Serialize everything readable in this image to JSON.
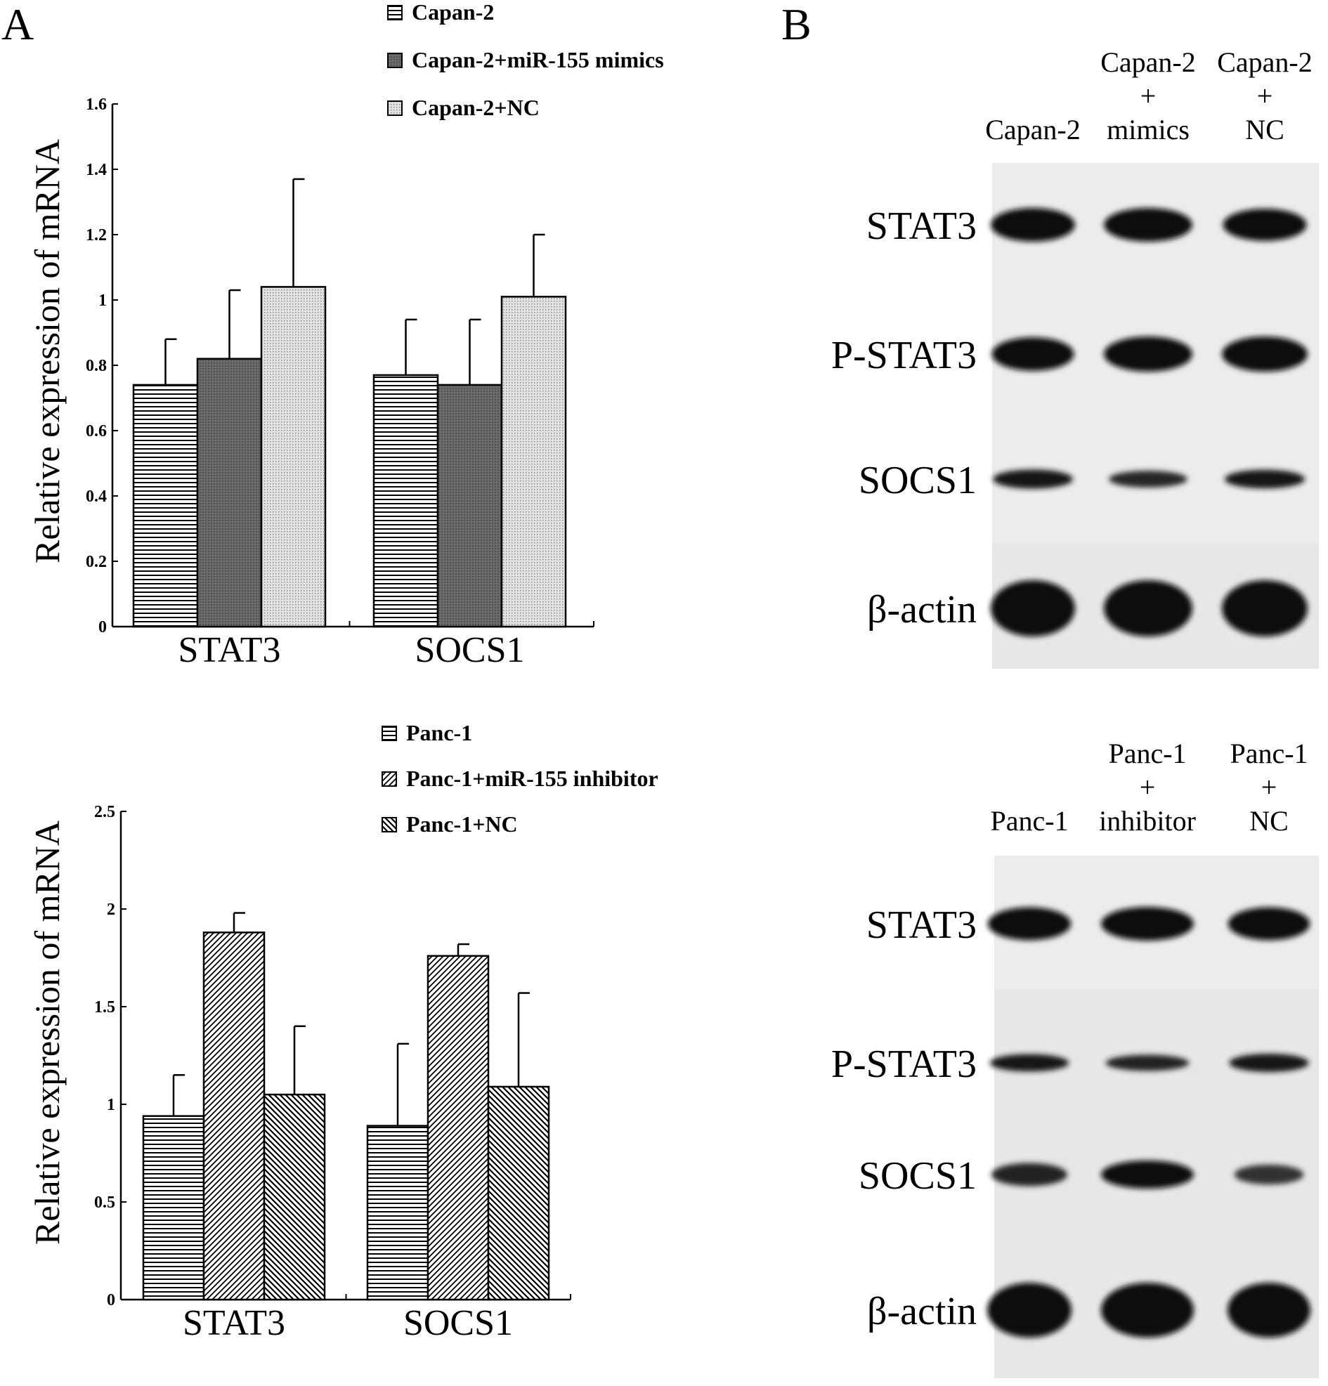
{
  "panels": [
    {
      "letter": "A"
    },
    {
      "letter": "B"
    }
  ],
  "chart_data": [
    {
      "type": "bar",
      "title": "",
      "xlabel": "",
      "ylabel": "Relative expression of mRNA",
      "categories": [
        "STAT3",
        "SOCS1"
      ],
      "ylim": [
        0,
        1.6
      ],
      "yticks": [
        "0",
        "0.2",
        "0.4",
        "0.6",
        "0.8",
        "1",
        "1.2",
        "1.4",
        "1.6"
      ],
      "ytick_values": [
        0,
        0.2,
        0.4,
        0.6,
        0.8,
        1.0,
        1.2,
        1.4,
        1.6
      ],
      "legend_position": "top",
      "series": [
        {
          "name": "Capan-2",
          "values": [
            0.74,
            0.77
          ],
          "errors": [
            0.14,
            0.17
          ],
          "pattern": "hlines"
        },
        {
          "name": "Capan-2+miR-155 mimics",
          "values": [
            0.82,
            0.74
          ],
          "errors": [
            0.21,
            0.2
          ],
          "pattern": "dark"
        },
        {
          "name": "Capan-2+NC",
          "values": [
            1.04,
            1.01
          ],
          "errors": [
            0.33,
            0.19
          ],
          "pattern": "dots"
        }
      ]
    },
    {
      "type": "bar",
      "title": "",
      "xlabel": "",
      "ylabel": "Relative expression of mRNA",
      "categories": [
        "STAT3",
        "SOCS1"
      ],
      "ylim": [
        0,
        2.5
      ],
      "yticks": [
        "0",
        "0.5",
        "1",
        "1.5",
        "2",
        "2.5"
      ],
      "ytick_values": [
        0,
        0.5,
        1.0,
        1.5,
        2.0,
        2.5
      ],
      "legend_position": "top",
      "series": [
        {
          "name": "Panc-1",
          "values": [
            0.94,
            0.89
          ],
          "errors": [
            0.21,
            0.42
          ],
          "pattern": "hlines"
        },
        {
          "name": "Panc-1+miR-155 inhibitor",
          "values": [
            1.88,
            1.76
          ],
          "errors": [
            0.1,
            0.06
          ],
          "pattern": "diagR"
        },
        {
          "name": "Panc-1+NC",
          "values": [
            1.05,
            1.09
          ],
          "errors": [
            0.35,
            0.48
          ],
          "pattern": "diagL"
        }
      ]
    }
  ],
  "blots": [
    {
      "lanes": [
        [
          "Capan-2"
        ],
        [
          "Capan-2",
          "+",
          "mimics"
        ],
        [
          "Capan-2",
          "+",
          "NC"
        ]
      ],
      "proteins": [
        "STAT3",
        "P-STAT3",
        "SOCS1",
        "β-actin"
      ],
      "band_intensity": [
        [
          1.0,
          1.0,
          0.9
        ],
        [
          0.9,
          1.0,
          1.0
        ],
        [
          0.8,
          0.55,
          0.75
        ],
        [
          1.0,
          1.0,
          1.0
        ]
      ]
    },
    {
      "lanes": [
        [
          "Panc-1"
        ],
        [
          "Panc-1",
          "+",
          "inhibitor"
        ],
        [
          "Panc-1",
          "+",
          "NC"
        ]
      ],
      "proteins": [
        "STAT3",
        "P-STAT3",
        "SOCS1",
        "β-actin"
      ],
      "band_intensity": [
        [
          0.95,
          1.0,
          0.95
        ],
        [
          0.75,
          0.6,
          0.85
        ],
        [
          0.6,
          1.0,
          0.35
        ],
        [
          1.0,
          1.0,
          1.0
        ]
      ]
    }
  ]
}
